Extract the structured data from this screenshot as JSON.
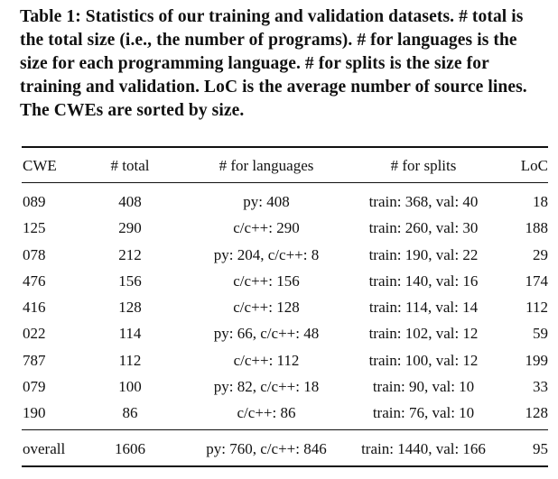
{
  "caption": "Table 1: Statistics of our training and validation datasets. # total is the total size (i.e., the number of programs). # for languages is the size for each programming language. # for splits is the size for training and validation. LoC is the average number of source lines. The CWEs are sorted by size.",
  "headers": [
    "CWE",
    "# total",
    "# for languages",
    "# for splits",
    "LoC"
  ],
  "rows": [
    [
      "089",
      "408",
      "py: 408",
      "train: 368, val: 40",
      "18"
    ],
    [
      "125",
      "290",
      "c/c++: 290",
      "train: 260, val: 30",
      "188"
    ],
    [
      "078",
      "212",
      "py: 204, c/c++: 8",
      "train: 190, val: 22",
      "29"
    ],
    [
      "476",
      "156",
      "c/c++: 156",
      "train: 140, val: 16",
      "174"
    ],
    [
      "416",
      "128",
      "c/c++: 128",
      "train: 114, val: 14",
      "112"
    ],
    [
      "022",
      "114",
      "py: 66, c/c++: 48",
      "train: 102, val: 12",
      "59"
    ],
    [
      "787",
      "112",
      "c/c++: 112",
      "train: 100, val: 12",
      "199"
    ],
    [
      "079",
      "100",
      "py: 82, c/c++: 18",
      "train: 90, val: 10",
      "33"
    ],
    [
      "190",
      "86",
      "c/c++: 86",
      "train: 76, val: 10",
      "128"
    ]
  ],
  "overall": [
    "overall",
    "1606",
    "py: 760, c/c++: 846",
    "train: 1440, val: 166",
    "95"
  ]
}
